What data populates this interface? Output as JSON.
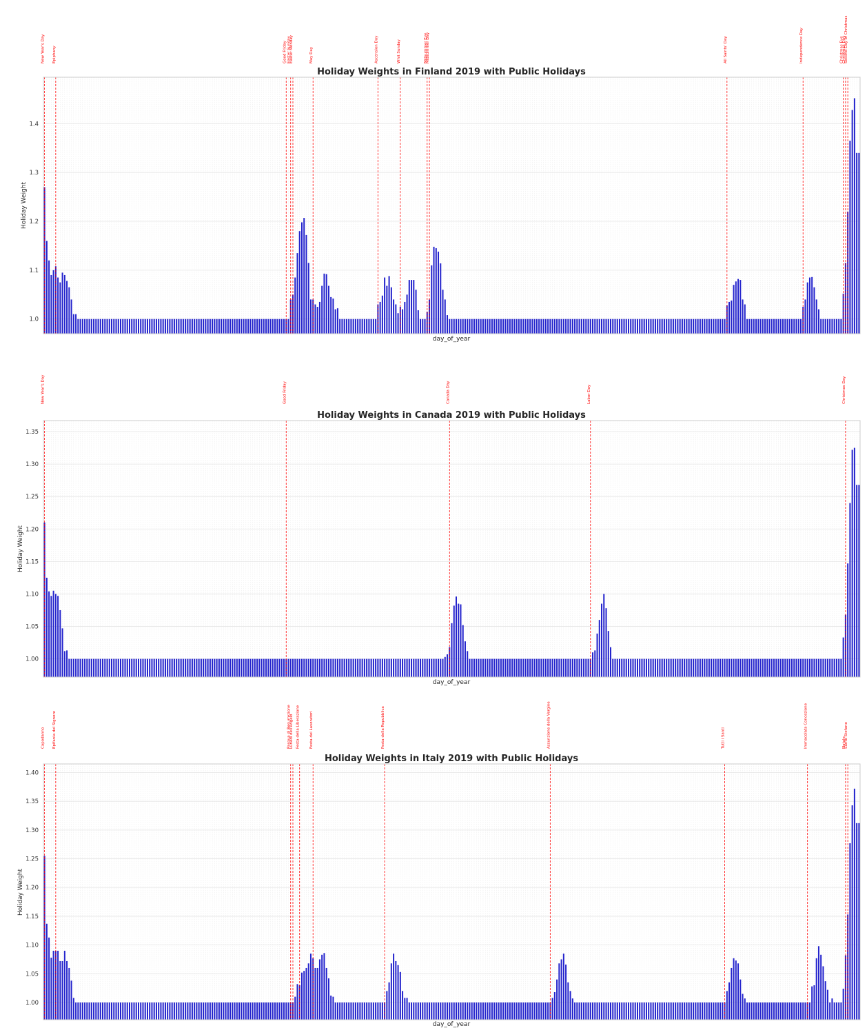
{
  "style": {
    "bar_color": "#2323cc",
    "holiday_line_color": "#ff0000",
    "grid_color": "#e5e5e5",
    "frame_color": "#cccccc"
  },
  "chart_data": [
    {
      "type": "bar",
      "title": "Holiday Weights in Finland 2019 with Public Holidays",
      "xlabel": "day_of_year",
      "ylabel": "Holiday Weight",
      "xlim": [
        1,
        365
      ],
      "ylim": [
        0.97,
        1.495
      ],
      "yticks": [
        1.0,
        1.1,
        1.2,
        1.3,
        1.4
      ],
      "ytick_labels": [
        "1.0",
        "1.1",
        "1.2",
        "1.3",
        "1.4"
      ],
      "grid": true,
      "baseline": 1.0,
      "anchors": [
        [
          1,
          1.27
        ],
        [
          2,
          1.16
        ],
        [
          3,
          1.12
        ],
        [
          4,
          1.09
        ],
        [
          5,
          1.1
        ],
        [
          6,
          1.108
        ],
        [
          7,
          1.085
        ],
        [
          8,
          1.075
        ],
        [
          9,
          1.095
        ],
        [
          10,
          1.09
        ],
        [
          11,
          1.078
        ],
        [
          12,
          1.065
        ],
        [
          13,
          1.04
        ],
        [
          14,
          1.01
        ],
        [
          15,
          1.01
        ],
        [
          16,
          1.0
        ],
        [
          110,
          1.0
        ],
        [
          111,
          1.04
        ],
        [
          112,
          1.05
        ],
        [
          113,
          1.085
        ],
        [
          114,
          1.135
        ],
        [
          115,
          1.18
        ],
        [
          116,
          1.198
        ],
        [
          117,
          1.207
        ],
        [
          118,
          1.172
        ],
        [
          119,
          1.115
        ],
        [
          120,
          1.04
        ],
        [
          121,
          1.04
        ],
        [
          122,
          1.03
        ],
        [
          123,
          1.025
        ],
        [
          124,
          1.035
        ],
        [
          125,
          1.068
        ],
        [
          126,
          1.093
        ],
        [
          127,
          1.092
        ],
        [
          128,
          1.068
        ],
        [
          129,
          1.045
        ],
        [
          130,
          1.042
        ],
        [
          131,
          1.02
        ],
        [
          132,
          1.022
        ],
        [
          133,
          1.0
        ],
        [
          149,
          1.0
        ],
        [
          150,
          1.03
        ],
        [
          151,
          1.035
        ],
        [
          152,
          1.048
        ],
        [
          153,
          1.085
        ],
        [
          154,
          1.068
        ],
        [
          155,
          1.088
        ],
        [
          156,
          1.065
        ],
        [
          157,
          1.04
        ],
        [
          158,
          1.03
        ],
        [
          159,
          1.012
        ],
        [
          160,
          1.025
        ],
        [
          161,
          1.02
        ],
        [
          162,
          1.035
        ],
        [
          163,
          1.05
        ],
        [
          164,
          1.08
        ],
        [
          165,
          1.08
        ],
        [
          166,
          1.08
        ],
        [
          167,
          1.06
        ],
        [
          168,
          1.018
        ],
        [
          169,
          1.0
        ],
        [
          171,
          1.0
        ],
        [
          172,
          1.015
        ],
        [
          173,
          1.04
        ],
        [
          174,
          1.11
        ],
        [
          175,
          1.148
        ],
        [
          176,
          1.145
        ],
        [
          177,
          1.138
        ],
        [
          178,
          1.114
        ],
        [
          179,
          1.06
        ],
        [
          180,
          1.04
        ],
        [
          181,
          1.008
        ],
        [
          182,
          1.0
        ],
        [
          305,
          1.0
        ],
        [
          306,
          1.028
        ],
        [
          307,
          1.035
        ],
        [
          308,
          1.038
        ],
        [
          309,
          1.07
        ],
        [
          310,
          1.077
        ],
        [
          311,
          1.082
        ],
        [
          312,
          1.08
        ],
        [
          313,
          1.04
        ],
        [
          314,
          1.03
        ],
        [
          315,
          1.0
        ],
        [
          339,
          1.0
        ],
        [
          340,
          1.025
        ],
        [
          341,
          1.04
        ],
        [
          342,
          1.075
        ],
        [
          343,
          1.085
        ],
        [
          344,
          1.086
        ],
        [
          345,
          1.065
        ],
        [
          346,
          1.04
        ],
        [
          347,
          1.02
        ],
        [
          348,
          1.0
        ],
        [
          357,
          1.0
        ],
        [
          358,
          1.052
        ],
        [
          359,
          1.115
        ],
        [
          360,
          1.22
        ],
        [
          361,
          1.365
        ],
        [
          362,
          1.428
        ],
        [
          363,
          1.452
        ],
        [
          364,
          1.34
        ],
        [
          365,
          1.34
        ]
      ],
      "holidays": [
        {
          "name": "New Year's Day",
          "day": 1
        },
        {
          "name": "Epiphany",
          "day": 6
        },
        {
          "name": "Good Friday",
          "day": 109
        },
        {
          "name": "Easter Sunday",
          "day": 111
        },
        {
          "name": "Easter Monday",
          "day": 112
        },
        {
          "name": "May Day",
          "day": 121
        },
        {
          "name": "Ascension Day",
          "day": 150
        },
        {
          "name": "Whit Sunday",
          "day": 160
        },
        {
          "name": "Midsummer Eve",
          "day": 172
        },
        {
          "name": "Midsummer Day",
          "day": 173
        },
        {
          "name": "All Saints' Day",
          "day": 306
        },
        {
          "name": "Independence Day",
          "day": 340
        },
        {
          "name": "Christmas Eve",
          "day": 358
        },
        {
          "name": "Christmas Day",
          "day": 359
        },
        {
          "name": "Second Day of Christmas",
          "day": 360
        }
      ]
    },
    {
      "type": "bar",
      "title": "Holiday Weights in Canada 2019 with Public Holidays",
      "xlabel": "day_of_year",
      "ylabel": "Holiday Weight",
      "xlim": [
        1,
        365
      ],
      "ylim": [
        0.972,
        1.367
      ],
      "yticks": [
        1.0,
        1.05,
        1.1,
        1.15,
        1.2,
        1.25,
        1.3,
        1.35
      ],
      "ytick_labels": [
        "1.00",
        "1.05",
        "1.10",
        "1.15",
        "1.20",
        "1.25",
        "1.30",
        "1.35"
      ],
      "grid": true,
      "baseline": 1.0,
      "anchors": [
        [
          1,
          1.21
        ],
        [
          2,
          1.125
        ],
        [
          3,
          1.104
        ],
        [
          4,
          1.097
        ],
        [
          5,
          1.105
        ],
        [
          6,
          1.1
        ],
        [
          7,
          1.097
        ],
        [
          8,
          1.075
        ],
        [
          9,
          1.047
        ],
        [
          10,
          1.012
        ],
        [
          11,
          1.013
        ],
        [
          12,
          1.0
        ],
        [
          179,
          1.0
        ],
        [
          180,
          1.003
        ],
        [
          181,
          1.007
        ],
        [
          182,
          1.018
        ],
        [
          183,
          1.055
        ],
        [
          184,
          1.082
        ],
        [
          185,
          1.096
        ],
        [
          186,
          1.085
        ],
        [
          187,
          1.084
        ],
        [
          188,
          1.052
        ],
        [
          189,
          1.027
        ],
        [
          190,
          1.012
        ],
        [
          191,
          1.0
        ],
        [
          245,
          1.0
        ],
        [
          246,
          1.01
        ],
        [
          247,
          1.013
        ],
        [
          248,
          1.039
        ],
        [
          249,
          1.06
        ],
        [
          250,
          1.085
        ],
        [
          251,
          1.1
        ],
        [
          252,
          1.078
        ],
        [
          253,
          1.043
        ],
        [
          254,
          1.018
        ],
        [
          255,
          1.0
        ],
        [
          357,
          1.0
        ],
        [
          358,
          1.033
        ],
        [
          359,
          1.068
        ],
        [
          360,
          1.147
        ],
        [
          361,
          1.24
        ],
        [
          362,
          1.322
        ],
        [
          363,
          1.325
        ],
        [
          364,
          1.268
        ],
        [
          365,
          1.268
        ]
      ],
      "holidays": [
        {
          "name": "New Year's Day",
          "day": 1
        },
        {
          "name": "Good Friday",
          "day": 109
        },
        {
          "name": "Canada Day",
          "day": 182
        },
        {
          "name": "Labor Day",
          "day": 245
        },
        {
          "name": "Christmas Day",
          "day": 359
        }
      ]
    },
    {
      "type": "bar",
      "title": "Holiday Weights in Italy 2019 with Public Holidays",
      "xlabel": "day_of_year",
      "ylabel": "Holiday Weight",
      "xlim": [
        1,
        365
      ],
      "ylim": [
        0.97,
        1.415
      ],
      "yticks": [
        1.0,
        1.05,
        1.1,
        1.15,
        1.2,
        1.25,
        1.3,
        1.35,
        1.4
      ],
      "ytick_labels": [
        "1.00",
        "1.05",
        "1.10",
        "1.15",
        "1.20",
        "1.25",
        "1.30",
        "1.35",
        "1.40"
      ],
      "grid": true,
      "baseline": 1.0,
      "anchors": [
        [
          1,
          1.255
        ],
        [
          2,
          1.137
        ],
        [
          3,
          1.113
        ],
        [
          4,
          1.078
        ],
        [
          5,
          1.09
        ],
        [
          6,
          1.09
        ],
        [
          7,
          1.09
        ],
        [
          8,
          1.072
        ],
        [
          9,
          1.072
        ],
        [
          10,
          1.09
        ],
        [
          11,
          1.072
        ],
        [
          12,
          1.06
        ],
        [
          13,
          1.038
        ],
        [
          14,
          1.008
        ],
        [
          15,
          1.0
        ],
        [
          112,
          1.0
        ],
        [
          113,
          1.01
        ],
        [
          114,
          1.032
        ],
        [
          115,
          1.03
        ],
        [
          116,
          1.052
        ],
        [
          117,
          1.055
        ],
        [
          118,
          1.06
        ],
        [
          119,
          1.068
        ],
        [
          120,
          1.085
        ],
        [
          121,
          1.077
        ],
        [
          122,
          1.06
        ],
        [
          123,
          1.06
        ],
        [
          124,
          1.075
        ],
        [
          125,
          1.083
        ],
        [
          126,
          1.086
        ],
        [
          127,
          1.06
        ],
        [
          128,
          1.042
        ],
        [
          129,
          1.012
        ],
        [
          130,
          1.01
        ],
        [
          131,
          1.0
        ],
        [
          153,
          1.0
        ],
        [
          154,
          1.02
        ],
        [
          155,
          1.035
        ],
        [
          156,
          1.068
        ],
        [
          157,
          1.085
        ],
        [
          158,
          1.072
        ],
        [
          159,
          1.065
        ],
        [
          160,
          1.053
        ],
        [
          161,
          1.02
        ],
        [
          162,
          1.008
        ],
        [
          163,
          1.008
        ],
        [
          164,
          1.0
        ],
        [
          227,
          1.0
        ],
        [
          228,
          1.008
        ],
        [
          229,
          1.018
        ],
        [
          230,
          1.04
        ],
        [
          231,
          1.068
        ],
        [
          232,
          1.075
        ],
        [
          233,
          1.085
        ],
        [
          234,
          1.066
        ],
        [
          235,
          1.035
        ],
        [
          236,
          1.02
        ],
        [
          237,
          1.007
        ],
        [
          238,
          1.0
        ],
        [
          305,
          1.0
        ],
        [
          306,
          1.02
        ],
        [
          307,
          1.035
        ],
        [
          308,
          1.06
        ],
        [
          309,
          1.077
        ],
        [
          310,
          1.073
        ],
        [
          311,
          1.068
        ],
        [
          312,
          1.04
        ],
        [
          313,
          1.015
        ],
        [
          314,
          1.007
        ],
        [
          315,
          1.0
        ],
        [
          343,
          1.0
        ],
        [
          344,
          1.028
        ],
        [
          345,
          1.03
        ],
        [
          346,
          1.077
        ],
        [
          347,
          1.098
        ],
        [
          348,
          1.083
        ],
        [
          349,
          1.063
        ],
        [
          350,
          1.037
        ],
        [
          351,
          1.022
        ],
        [
          352,
          1.0
        ],
        [
          353,
          1.007
        ],
        [
          354,
          1.0
        ],
        [
          357,
          1.0
        ],
        [
          358,
          1.024
        ],
        [
          359,
          1.082
        ],
        [
          360,
          1.153
        ],
        [
          361,
          1.277
        ],
        [
          362,
          1.343
        ],
        [
          363,
          1.372
        ],
        [
          364,
          1.312
        ],
        [
          365,
          1.312
        ]
      ],
      "holidays": [
        {
          "name": "Capodanno",
          "day": 1
        },
        {
          "name": "Epifania del Signore",
          "day": 6
        },
        {
          "name": "Pasqua di Resurrezione",
          "day": 111
        },
        {
          "name": "Lunedì dell'Angelo",
          "day": 112
        },
        {
          "name": "Festa della Liberazione",
          "day": 115
        },
        {
          "name": "Festa dei Lavoratori",
          "day": 121
        },
        {
          "name": "Festa della Repubblica",
          "day": 153
        },
        {
          "name": "Assunzione della Vergine",
          "day": 227
        },
        {
          "name": "Tutti i Santi",
          "day": 305
        },
        {
          "name": "Immacolata Concezione",
          "day": 342
        },
        {
          "name": "Natale",
          "day": 359
        },
        {
          "name": "Santo Stefano",
          "day": 360
        }
      ]
    }
  ]
}
